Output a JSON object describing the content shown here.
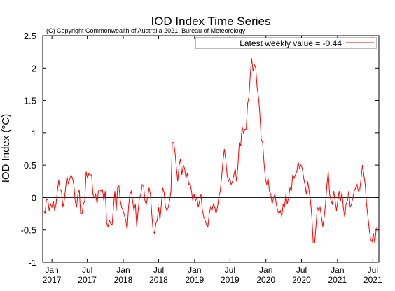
{
  "chart_data": {
    "type": "line",
    "title": "IOD Index Time Series",
    "subtitle": "(C) Copyright Commonwealth of Australia 2021, Bureau of Meteorology",
    "ylabel": "IOD Index (°C)",
    "xlabel": "",
    "ylim": [
      -1,
      2.5
    ],
    "xlim": [
      "2016-11-15",
      "2021-08-01"
    ],
    "yticks": [
      {
        "v": 2.5,
        "label": "2.5"
      },
      {
        "v": 2,
        "label": "2"
      },
      {
        "v": 1.5,
        "label": "1.5"
      },
      {
        "v": 1,
        "label": "1"
      },
      {
        "v": 0.5,
        "label": "0.5"
      },
      {
        "v": 0,
        "label": "0"
      },
      {
        "v": -0.5,
        "label": "-0.5"
      },
      {
        "v": -1,
        "label": "-1"
      }
    ],
    "xticks": [
      {
        "date": "2017-01-01",
        "month": "Jan",
        "year": "2017"
      },
      {
        "date": "2017-07-01",
        "month": "Jul",
        "year": "2017"
      },
      {
        "date": "2018-01-01",
        "month": "Jan",
        "year": "2018"
      },
      {
        "date": "2018-07-01",
        "month": "Jul",
        "year": "2018"
      },
      {
        "date": "2019-01-01",
        "month": "Jan",
        "year": "2019"
      },
      {
        "date": "2019-07-01",
        "month": "Jul",
        "year": "2019"
      },
      {
        "date": "2020-01-01",
        "month": "Jan",
        "year": "2020"
      },
      {
        "date": "2020-07-01",
        "month": "Jul",
        "year": "2020"
      },
      {
        "date": "2021-01-01",
        "month": "Jan",
        "year": "2021"
      },
      {
        "date": "2021-07-01",
        "month": "Jul",
        "year": "2021"
      }
    ],
    "zero_line": true,
    "grid": false,
    "legend_position": "top-right",
    "series": [
      {
        "name": "Latest weekly value = -0.44",
        "color": "#ff0000",
        "points": [
          [
            "2016-11-20",
            -0.2
          ],
          [
            "2016-11-27",
            -0.25
          ],
          [
            "2016-12-04",
            -0.02
          ],
          [
            "2016-12-11",
            -0.04
          ],
          [
            "2016-12-18",
            -0.2
          ],
          [
            "2016-12-25",
            -0.1
          ],
          [
            "2017-01-01",
            -0.15
          ],
          [
            "2017-01-08",
            -0.05
          ],
          [
            "2017-01-15",
            -0.2
          ],
          [
            "2017-01-22",
            -0.1
          ],
          [
            "2017-01-29",
            0.1
          ],
          [
            "2017-02-05",
            0.27
          ],
          [
            "2017-02-12",
            0.12
          ],
          [
            "2017-02-19",
            0.1
          ],
          [
            "2017-02-26",
            -0.15
          ],
          [
            "2017-03-05",
            -0.05
          ],
          [
            "2017-03-12",
            0.15
          ],
          [
            "2017-03-19",
            0.33
          ],
          [
            "2017-03-26",
            0.22
          ],
          [
            "2017-04-02",
            0.28
          ],
          [
            "2017-04-09",
            0.35
          ],
          [
            "2017-04-16",
            0.3
          ],
          [
            "2017-04-23",
            0.2
          ],
          [
            "2017-04-30",
            -0.05
          ],
          [
            "2017-05-07",
            -0.15
          ],
          [
            "2017-05-14",
            0.05
          ],
          [
            "2017-05-21",
            0.12
          ],
          [
            "2017-05-28",
            -0.25
          ],
          [
            "2017-06-04",
            -0.25
          ],
          [
            "2017-06-11",
            -0.1
          ],
          [
            "2017-06-18",
            -0.05
          ],
          [
            "2017-06-25",
            0.4
          ],
          [
            "2017-07-02",
            0.3
          ],
          [
            "2017-07-09",
            0.37
          ],
          [
            "2017-07-16",
            0.35
          ],
          [
            "2017-07-23",
            0.35
          ],
          [
            "2017-07-30",
            0.05
          ],
          [
            "2017-08-06",
            0.0
          ],
          [
            "2017-08-13",
            0.05
          ],
          [
            "2017-08-20",
            -0.1
          ],
          [
            "2017-08-27",
            0.1
          ],
          [
            "2017-09-03",
            0.12
          ],
          [
            "2017-09-10",
            0.1
          ],
          [
            "2017-09-17",
            0.12
          ],
          [
            "2017-09-24",
            -0.05
          ],
          [
            "2017-10-01",
            0.1
          ],
          [
            "2017-10-08",
            -0.4
          ],
          [
            "2017-10-15",
            -0.45
          ],
          [
            "2017-10-22",
            -0.35
          ],
          [
            "2017-10-29",
            -0.4
          ],
          [
            "2017-11-05",
            -0.42
          ],
          [
            "2017-11-12",
            -0.15
          ],
          [
            "2017-11-19",
            0.1
          ],
          [
            "2017-11-26",
            -0.2
          ],
          [
            "2017-12-03",
            0.15
          ],
          [
            "2017-12-10",
            0.18
          ],
          [
            "2017-12-17",
            -0.05
          ],
          [
            "2017-12-24",
            -0.15
          ],
          [
            "2017-12-31",
            -0.2
          ],
          [
            "2018-01-07",
            -0.28
          ],
          [
            "2018-01-14",
            -0.35
          ],
          [
            "2018-01-21",
            -0.5
          ],
          [
            "2018-01-28",
            -0.15
          ],
          [
            "2018-02-04",
            0.05
          ],
          [
            "2018-02-11",
            0.1
          ],
          [
            "2018-02-18",
            -0.05
          ],
          [
            "2018-02-25",
            -0.2
          ],
          [
            "2018-03-04",
            -0.1
          ],
          [
            "2018-03-11",
            -0.45
          ],
          [
            "2018-03-18",
            -0.2
          ],
          [
            "2018-03-25",
            0.0
          ],
          [
            "2018-04-01",
            0.05
          ],
          [
            "2018-04-08",
            0.2
          ],
          [
            "2018-04-15",
            0.18
          ],
          [
            "2018-04-22",
            -0.05
          ],
          [
            "2018-04-29",
            -0.1
          ],
          [
            "2018-05-06",
            0.0
          ],
          [
            "2018-05-13",
            0.15
          ],
          [
            "2018-05-20",
            0.05
          ],
          [
            "2018-05-27",
            -0.25
          ],
          [
            "2018-06-03",
            -0.52
          ],
          [
            "2018-06-10",
            -0.55
          ],
          [
            "2018-06-17",
            -0.4
          ],
          [
            "2018-06-24",
            -0.35
          ],
          [
            "2018-07-01",
            -0.15
          ],
          [
            "2018-07-08",
            -0.35
          ],
          [
            "2018-07-15",
            -0.1
          ],
          [
            "2018-07-22",
            0.15
          ],
          [
            "2018-07-29",
            0.08
          ],
          [
            "2018-08-05",
            -0.15
          ],
          [
            "2018-08-12",
            -0.2
          ],
          [
            "2018-08-19",
            -0.15
          ],
          [
            "2018-08-26",
            -0.05
          ],
          [
            "2018-09-02",
            0.1
          ],
          [
            "2018-09-09",
            0.85
          ],
          [
            "2018-09-16",
            0.85
          ],
          [
            "2018-09-23",
            0.7
          ],
          [
            "2018-09-30",
            0.45
          ],
          [
            "2018-10-07",
            0.25
          ],
          [
            "2018-10-14",
            0.5
          ],
          [
            "2018-10-21",
            0.6
          ],
          [
            "2018-10-28",
            0.35
          ],
          [
            "2018-11-04",
            0.5
          ],
          [
            "2018-11-11",
            0.45
          ],
          [
            "2018-11-18",
            0.3
          ],
          [
            "2018-11-25",
            0.38
          ],
          [
            "2018-12-02",
            0.2
          ],
          [
            "2018-12-09",
            0.22
          ],
          [
            "2018-12-16",
            0.1
          ],
          [
            "2018-12-23",
            -0.05
          ],
          [
            "2018-12-30",
            0.05
          ],
          [
            "2019-01-06",
            -0.05
          ],
          [
            "2019-01-13",
            0.0
          ],
          [
            "2019-01-20",
            -0.15
          ],
          [
            "2019-01-27",
            -0.05
          ],
          [
            "2019-02-03",
            0.05
          ],
          [
            "2019-02-10",
            -0.2
          ],
          [
            "2019-02-17",
            -0.3
          ],
          [
            "2019-02-24",
            -0.35
          ],
          [
            "2019-03-03",
            -0.42
          ],
          [
            "2019-03-10",
            -0.45
          ],
          [
            "2019-03-17",
            -0.25
          ],
          [
            "2019-03-24",
            -0.15
          ],
          [
            "2019-03-31",
            -0.2
          ],
          [
            "2019-04-07",
            -0.1
          ],
          [
            "2019-04-14",
            -0.15
          ],
          [
            "2019-04-21",
            -0.25
          ],
          [
            "2019-04-28",
            -0.15
          ],
          [
            "2019-05-05",
            0.0
          ],
          [
            "2019-05-12",
            0.1
          ],
          [
            "2019-05-19",
            0.3
          ],
          [
            "2019-05-26",
            0.55
          ],
          [
            "2019-06-02",
            0.75
          ],
          [
            "2019-06-09",
            0.6
          ],
          [
            "2019-06-16",
            0.35
          ],
          [
            "2019-06-23",
            0.25
          ],
          [
            "2019-06-30",
            0.3
          ],
          [
            "2019-07-07",
            0.2
          ],
          [
            "2019-07-14",
            0.25
          ],
          [
            "2019-07-21",
            0.35
          ],
          [
            "2019-07-28",
            0.45
          ],
          [
            "2019-08-04",
            0.25
          ],
          [
            "2019-08-11",
            0.5
          ],
          [
            "2019-08-18",
            0.85
          ],
          [
            "2019-08-25",
            0.8
          ],
          [
            "2019-09-01",
            1.1
          ],
          [
            "2019-09-08",
            1.0
          ],
          [
            "2019-09-15",
            1.05
          ],
          [
            "2019-09-22",
            1.05
          ],
          [
            "2019-09-29",
            1.45
          ],
          [
            "2019-10-06",
            1.55
          ],
          [
            "2019-10-13",
            1.9
          ],
          [
            "2019-10-20",
            2.15
          ],
          [
            "2019-10-27",
            1.95
          ],
          [
            "2019-11-03",
            2.05
          ],
          [
            "2019-11-10",
            2.0
          ],
          [
            "2019-11-17",
            1.7
          ],
          [
            "2019-11-24",
            1.55
          ],
          [
            "2019-12-01",
            1.3
          ],
          [
            "2019-12-08",
            0.9
          ],
          [
            "2019-12-15",
            0.85
          ],
          [
            "2019-12-22",
            0.55
          ],
          [
            "2019-12-29",
            0.3
          ],
          [
            "2020-01-05",
            0.2
          ],
          [
            "2020-01-12",
            0.3
          ],
          [
            "2020-01-19",
            0.1
          ],
          [
            "2020-01-26",
            0.05
          ],
          [
            "2020-02-02",
            -0.1
          ],
          [
            "2020-02-09",
            0.0
          ],
          [
            "2020-02-16",
            0.05
          ],
          [
            "2020-02-23",
            -0.1
          ],
          [
            "2020-03-01",
            -0.2
          ],
          [
            "2020-03-08",
            -0.25
          ],
          [
            "2020-03-15",
            -0.2
          ],
          [
            "2020-03-22",
            -0.3
          ],
          [
            "2020-03-29",
            -0.1
          ],
          [
            "2020-04-05",
            -0.15
          ],
          [
            "2020-04-12",
            0.05
          ],
          [
            "2020-04-19",
            -0.1
          ],
          [
            "2020-04-26",
            0.0
          ],
          [
            "2020-05-03",
            0.15
          ],
          [
            "2020-05-10",
            0.1
          ],
          [
            "2020-05-17",
            0.35
          ],
          [
            "2020-05-24",
            0.3
          ],
          [
            "2020-05-31",
            0.35
          ],
          [
            "2020-06-07",
            0.4
          ],
          [
            "2020-06-14",
            0.55
          ],
          [
            "2020-06-21",
            0.45
          ],
          [
            "2020-06-28",
            0.5
          ],
          [
            "2020-07-05",
            0.45
          ],
          [
            "2020-07-12",
            0.3
          ],
          [
            "2020-07-19",
            0.2
          ],
          [
            "2020-07-26",
            0.05
          ],
          [
            "2020-08-02",
            0.25
          ],
          [
            "2020-08-09",
            0.1
          ],
          [
            "2020-08-16",
            -0.05
          ],
          [
            "2020-08-23",
            -0.3
          ],
          [
            "2020-08-30",
            -0.7
          ],
          [
            "2020-09-06",
            -0.7
          ],
          [
            "2020-09-13",
            -0.45
          ],
          [
            "2020-09-20",
            -0.15
          ],
          [
            "2020-09-27",
            -0.2
          ],
          [
            "2020-10-04",
            -0.15
          ],
          [
            "2020-10-11",
            -0.3
          ],
          [
            "2020-10-18",
            -0.45
          ],
          [
            "2020-10-25",
            -0.3
          ],
          [
            "2020-11-01",
            -0.1
          ],
          [
            "2020-11-08",
            0.2
          ],
          [
            "2020-11-15",
            0.4
          ],
          [
            "2020-11-22",
            0.05
          ],
          [
            "2020-11-29",
            -0.05
          ],
          [
            "2020-12-06",
            -0.1
          ],
          [
            "2020-12-13",
            0.1
          ],
          [
            "2020-12-20",
            -0.05
          ],
          [
            "2020-12-27",
            -0.2
          ],
          [
            "2021-01-03",
            -0.05
          ],
          [
            "2021-01-10",
            0.1
          ],
          [
            "2021-01-17",
            -0.05
          ],
          [
            "2021-01-24",
            0.08
          ],
          [
            "2021-01-31",
            -0.15
          ],
          [
            "2021-02-07",
            -0.3
          ],
          [
            "2021-02-14",
            -0.1
          ],
          [
            "2021-02-21",
            -0.05
          ],
          [
            "2021-02-28",
            0.1
          ],
          [
            "2021-03-07",
            -0.15
          ],
          [
            "2021-03-14",
            -0.1
          ],
          [
            "2021-03-21",
            0.0
          ],
          [
            "2021-03-28",
            0.1
          ],
          [
            "2021-04-04",
            0.15
          ],
          [
            "2021-04-11",
            0.2
          ],
          [
            "2021-04-18",
            0.1
          ],
          [
            "2021-04-25",
            0.12
          ],
          [
            "2021-05-02",
            0.3
          ],
          [
            "2021-05-09",
            0.5
          ],
          [
            "2021-05-16",
            0.35
          ],
          [
            "2021-05-23",
            0.2
          ],
          [
            "2021-05-30",
            -0.1
          ],
          [
            "2021-06-06",
            -0.3
          ],
          [
            "2021-06-13",
            -0.5
          ],
          [
            "2021-06-20",
            -0.65
          ],
          [
            "2021-06-27",
            -0.68
          ],
          [
            "2021-07-04",
            -0.55
          ],
          [
            "2021-07-11",
            -0.7
          ],
          [
            "2021-07-18",
            -0.5
          ],
          [
            "2021-07-25",
            -0.44
          ]
        ]
      }
    ]
  }
}
